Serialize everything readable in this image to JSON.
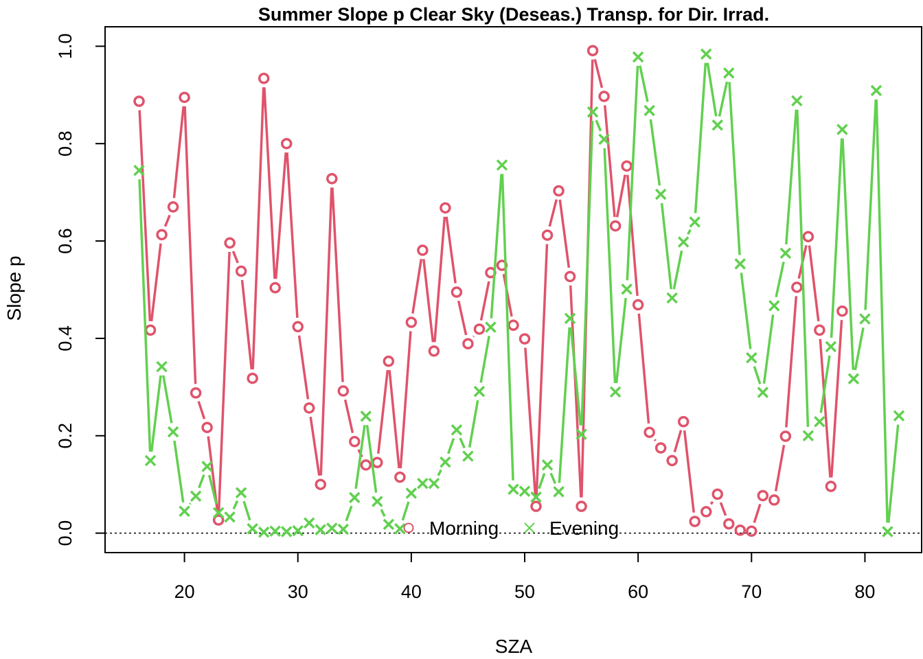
{
  "chart_data": {
    "type": "line",
    "title": "Summer Slope p Clear Sky (Deseas.) Transp. for Dir. Irrad.",
    "xlabel": "SZA",
    "ylabel": "Slope p",
    "xlim": [
      13,
      85
    ],
    "ylim": [
      -0.04,
      1.04
    ],
    "x_ticks": [
      20,
      30,
      40,
      50,
      60,
      70,
      80
    ],
    "y_ticks": [
      0.0,
      0.2,
      0.4,
      0.6,
      0.8,
      1.0
    ],
    "y_tick_labels": [
      "0.0",
      "0.2",
      "0.4",
      "0.6",
      "0.8",
      "1.0"
    ],
    "reference_line": 0,
    "legend": {
      "position": "bottom-center"
    },
    "series": [
      {
        "name": "Morning",
        "color": "#DF536B",
        "marker": "circle",
        "x": [
          16,
          17,
          18,
          19,
          20,
          21,
          22,
          23,
          24,
          25,
          26,
          27,
          28,
          29,
          30,
          31,
          32,
          33,
          34,
          35,
          36,
          37,
          38,
          39,
          40,
          41,
          42,
          43,
          44,
          45,
          46,
          47,
          48,
          49,
          50,
          51,
          52,
          53,
          54,
          55,
          56,
          57,
          58,
          59,
          60,
          61,
          62,
          63,
          64,
          65,
          66,
          67,
          68,
          69,
          70,
          71,
          72,
          73,
          74,
          75,
          76,
          77,
          78
        ],
        "y": [
          0.887,
          0.417,
          0.613,
          0.67,
          0.895,
          0.288,
          0.217,
          0.027,
          0.596,
          0.538,
          0.318,
          0.934,
          0.504,
          0.8,
          0.424,
          0.257,
          0.1,
          0.728,
          0.292,
          0.188,
          0.14,
          0.145,
          0.353,
          0.115,
          0.433,
          0.581,
          0.374,
          0.668,
          0.495,
          0.389,
          0.419,
          0.535,
          0.55,
          0.427,
          0.399,
          0.055,
          0.612,
          0.703,
          0.527,
          0.055,
          0.991,
          0.897,
          0.631,
          0.754,
          0.469,
          0.207,
          0.175,
          0.149,
          0.229,
          0.024,
          0.044,
          0.08,
          0.019,
          0.006,
          0.004,
          0.077,
          0.068,
          0.199,
          0.505,
          0.609,
          0.417,
          0.096,
          0.456
        ]
      },
      {
        "name": "Evening",
        "color": "#61D04F",
        "marker": "cross",
        "x": [
          16,
          17,
          18,
          19,
          20,
          21,
          22,
          23,
          24,
          25,
          26,
          27,
          28,
          29,
          30,
          31,
          32,
          33,
          34,
          35,
          36,
          37,
          38,
          39,
          40,
          41,
          42,
          43,
          44,
          45,
          46,
          47,
          48,
          49,
          50,
          51,
          52,
          53,
          54,
          55,
          56,
          57,
          58,
          59,
          60,
          61,
          62,
          63,
          64,
          65,
          66,
          67,
          68,
          69,
          70,
          71,
          72,
          73,
          74,
          75,
          76,
          77,
          78,
          79,
          80,
          81,
          82,
          83
        ],
        "y": [
          0.745,
          0.149,
          0.342,
          0.208,
          0.045,
          0.076,
          0.137,
          0.042,
          0.033,
          0.083,
          0.009,
          0.002,
          0.004,
          0.003,
          0.005,
          0.021,
          0.007,
          0.01,
          0.008,
          0.073,
          0.24,
          0.065,
          0.018,
          0.009,
          0.082,
          0.102,
          0.102,
          0.146,
          0.212,
          0.158,
          0.291,
          0.423,
          0.756,
          0.09,
          0.086,
          0.074,
          0.14,
          0.085,
          0.441,
          0.203,
          0.865,
          0.809,
          0.29,
          0.501,
          0.978,
          0.868,
          0.696,
          0.483,
          0.598,
          0.639,
          0.984,
          0.838,
          0.945,
          0.553,
          0.36,
          0.289,
          0.467,
          0.575,
          0.888,
          0.2,
          0.229,
          0.383,
          0.829,
          0.317,
          0.44,
          0.909,
          0.003,
          0.241
        ]
      }
    ]
  }
}
